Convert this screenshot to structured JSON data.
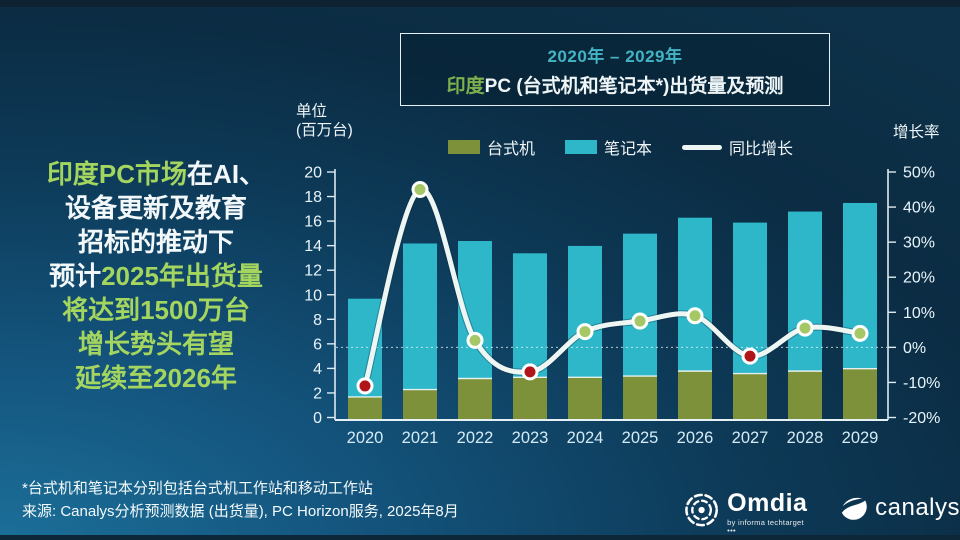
{
  "title": {
    "years": "2020年 – 2029年",
    "main_green": "印度",
    "main_rest": "PC (台式机和笔记本*)出货量及预测"
  },
  "left_message": {
    "line1_green": "印度PC市场",
    "line1_white": "在AI、",
    "line2": "设备更新及教育",
    "line3": "招标的推动下",
    "line4_white": "预计",
    "line4_green": "2025年出货量",
    "line5": "将达到1500万台",
    "line6": "增长势头有望",
    "line7": "延续至2026年"
  },
  "chart_data": {
    "type": "bar+line",
    "categories": [
      "2020",
      "2021",
      "2022",
      "2023",
      "2024",
      "2025",
      "2026",
      "2027",
      "2028",
      "2029"
    ],
    "series": [
      {
        "name": "台式机",
        "type": "bar",
        "stack": "pc",
        "color": "#7d913b",
        "values": [
          1.8,
          2.4,
          3.3,
          3.4,
          3.4,
          3.5,
          3.9,
          3.7,
          3.9,
          4.1
        ]
      },
      {
        "name": "笔记本",
        "type": "bar",
        "stack": "pc",
        "color": "#2eb6c9",
        "values": [
          8.0,
          11.9,
          11.2,
          10.1,
          10.7,
          11.6,
          12.5,
          12.3,
          13.0,
          13.5
        ]
      },
      {
        "name": "同比增长",
        "type": "line",
        "color": "#edf6f3",
        "values_pct": [
          -11,
          45,
          2,
          -7,
          4.5,
          7.5,
          9,
          -2.5,
          5.5,
          4
        ]
      }
    ],
    "totals": [
      9.8,
      14.3,
      14.5,
      13.5,
      14.1,
      15.1,
      16.4,
      16.0,
      16.9,
      17.6
    ],
    "left_axis": {
      "title_line1": "单位",
      "title_line2": "(百万台)",
      "min": 0,
      "max": 20,
      "step": 2
    },
    "right_axis": {
      "title": "增长率",
      "min": -20,
      "max": 50,
      "step": 10,
      "unit": "%"
    },
    "zero_growth_gridline": true,
    "legend_position": "top",
    "point_colors": {
      "positive": "#a6c765",
      "negative": "#b0151a"
    }
  },
  "footer": {
    "note": "*台式机和笔记本分别包括台式机工作站和移动工作站",
    "source": "来源: Canalys分析预测数据 (出货量), PC Horizon服务, 2025年8月"
  },
  "logos": {
    "omdia": "Omdia",
    "omdia_sub": "by informa techtarget •••",
    "canalys": "canalys"
  },
  "colors": {
    "background_light": "#1b6f99",
    "background_dark": "#0b2c43",
    "accent_teal": "#43b4c4",
    "accent_green": "#a4d55f"
  }
}
